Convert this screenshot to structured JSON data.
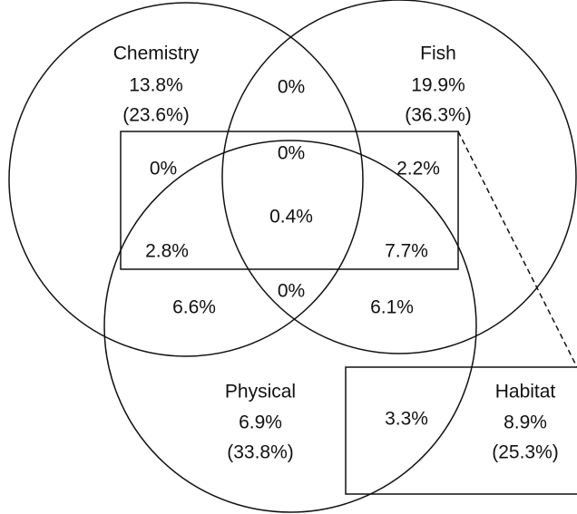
{
  "sets": [
    {
      "name": "Chemistry",
      "value": "13.8%",
      "total": "(23.6%)"
    },
    {
      "name": "Fish",
      "value": "19.9%",
      "total": "(36.3%)"
    },
    {
      "name": "Physical",
      "value": "6.9%",
      "total": "(33.8%)"
    },
    {
      "name": "Habitat",
      "value": "8.9%",
      "total": "(25.3%)"
    }
  ],
  "regions": {
    "chemistry_fish": "0%",
    "chemistry_habitat": "0%",
    "chemistry_fish_habitat": "0%",
    "fish_habitat": "2.2%",
    "all": "0.4%",
    "chemistry_physical_habitat": "2.8%",
    "fish_physical_habitat": "7.7%",
    "chemistry_physical": "6.6%",
    "chemistry_fish_physical": "0%",
    "fish_physical": "6.1%",
    "physical_habitat": "3.3%"
  }
}
